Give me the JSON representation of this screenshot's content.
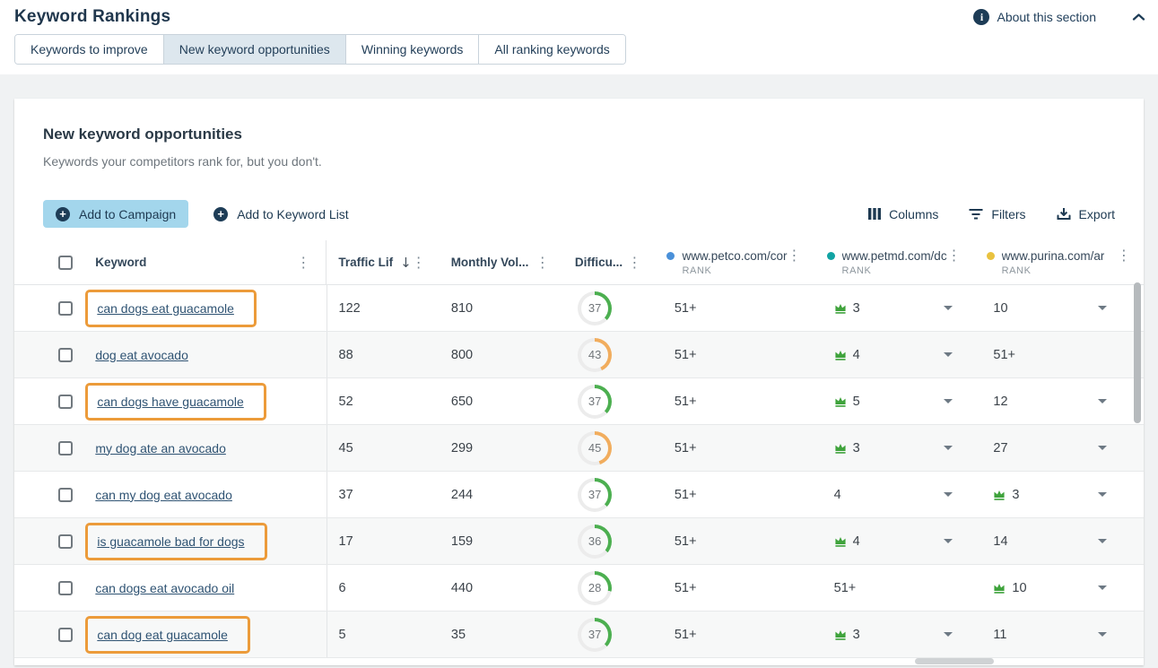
{
  "page": {
    "title": "Keyword Rankings",
    "about_label": "About this section",
    "tabs": [
      {
        "label": "Keywords to improve",
        "active": false
      },
      {
        "label": "New keyword opportunities",
        "active": true
      },
      {
        "label": "Winning keywords",
        "active": false
      },
      {
        "label": "All ranking keywords",
        "active": false
      }
    ]
  },
  "section": {
    "title": "New keyword opportunities",
    "subtitle": "Keywords your competitors rank for, but you don't.",
    "actions": {
      "add_to_campaign": "Add to Campaign",
      "add_to_keyword_list": "Add to Keyword List",
      "columns": "Columns",
      "filters": "Filters",
      "export": "Export"
    }
  },
  "table": {
    "columns": {
      "keyword": "Keyword",
      "traffic": "Traffic Lif",
      "volume": "Monthly Vol...",
      "difficulty": "Difficu...",
      "rank_sublabel": "RANK",
      "domains": [
        {
          "label": "www.petco.com/cor",
          "dot_color": "#4a90d9"
        },
        {
          "label": "www.petmd.com/dc",
          "dot_color": "#11a3a3"
        },
        {
          "label": "www.purina.com/ar",
          "dot_color": "#e9c23f"
        }
      ]
    },
    "rows": [
      {
        "keyword": "can dogs eat guacamole",
        "highlighted": true,
        "traffic": "122",
        "volume": "810",
        "difficulty": 37,
        "ranks": [
          {
            "rank": "51+",
            "crown": false,
            "dropdown": false
          },
          {
            "rank": "3",
            "crown": true,
            "dropdown": true
          },
          {
            "rank": "10",
            "crown": false,
            "dropdown": true
          }
        ]
      },
      {
        "keyword": "dog eat avocado",
        "highlighted": false,
        "traffic": "88",
        "volume": "800",
        "difficulty": 43,
        "ranks": [
          {
            "rank": "51+",
            "crown": false,
            "dropdown": false
          },
          {
            "rank": "4",
            "crown": true,
            "dropdown": true
          },
          {
            "rank": "51+",
            "crown": false,
            "dropdown": false
          }
        ]
      },
      {
        "keyword": "can dogs have guacamole",
        "highlighted": true,
        "traffic": "52",
        "volume": "650",
        "difficulty": 37,
        "ranks": [
          {
            "rank": "51+",
            "crown": false,
            "dropdown": false
          },
          {
            "rank": "5",
            "crown": true,
            "dropdown": true
          },
          {
            "rank": "12",
            "crown": false,
            "dropdown": true
          }
        ]
      },
      {
        "keyword": "my dog ate an avocado",
        "highlighted": false,
        "traffic": "45",
        "volume": "299",
        "difficulty": 45,
        "ranks": [
          {
            "rank": "51+",
            "crown": false,
            "dropdown": false
          },
          {
            "rank": "3",
            "crown": true,
            "dropdown": true
          },
          {
            "rank": "27",
            "crown": false,
            "dropdown": true
          }
        ]
      },
      {
        "keyword": "can my dog eat avocado",
        "highlighted": false,
        "traffic": "37",
        "volume": "244",
        "difficulty": 37,
        "ranks": [
          {
            "rank": "51+",
            "crown": false,
            "dropdown": false
          },
          {
            "rank": "4",
            "crown": false,
            "dropdown": true
          },
          {
            "rank": "3",
            "crown": true,
            "dropdown": true
          }
        ]
      },
      {
        "keyword": "is guacamole bad for dogs",
        "highlighted": true,
        "traffic": "17",
        "volume": "159",
        "difficulty": 36,
        "ranks": [
          {
            "rank": "51+",
            "crown": false,
            "dropdown": false
          },
          {
            "rank": "4",
            "crown": true,
            "dropdown": true
          },
          {
            "rank": "14",
            "crown": false,
            "dropdown": true
          }
        ]
      },
      {
        "keyword": "can dogs eat avocado oil",
        "highlighted": false,
        "traffic": "6",
        "volume": "440",
        "difficulty": 28,
        "ranks": [
          {
            "rank": "51+",
            "crown": false,
            "dropdown": false
          },
          {
            "rank": "51+",
            "crown": false,
            "dropdown": false
          },
          {
            "rank": "10",
            "crown": true,
            "dropdown": true
          }
        ]
      },
      {
        "keyword": "can dog eat guacamole",
        "highlighted": true,
        "traffic": "5",
        "volume": "35",
        "difficulty": 37,
        "ranks": [
          {
            "rank": "51+",
            "crown": false,
            "dropdown": false
          },
          {
            "rank": "3",
            "crown": true,
            "dropdown": true
          },
          {
            "rank": "11",
            "crown": false,
            "dropdown": true
          }
        ]
      }
    ]
  },
  "colors": {
    "navy": "#1d3c56",
    "keyword_link": "#2f5373",
    "primary_button_bg": "#a3d6ec",
    "active_tab_bg": "#dde7ee",
    "highlight_box_orange": "#ec9b3a",
    "difficulty_green": "#4caf50",
    "difficulty_orange": "#f1ad5e",
    "difficulty_track": "#ececec",
    "crown_green": "#3fa33c"
  }
}
